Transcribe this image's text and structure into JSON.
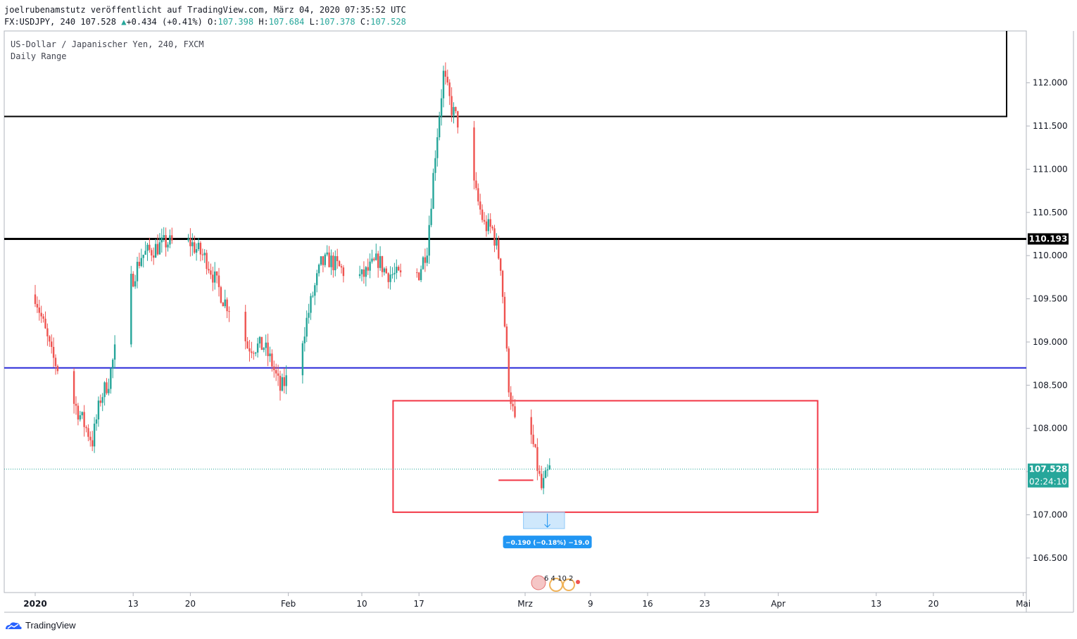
{
  "header": {
    "publisher_line": "joelrubenamstutz veröffentlicht auf TradingView.com, März 04, 2020 07:35:52 UTC",
    "symbol": "FX:USDJPY, 240",
    "last": "107.528",
    "change": "+0.434 (+0.41%)",
    "o_label": "O:",
    "o_value": "107.398",
    "h_label": "H:",
    "h_value": "107.684",
    "l_label": "L:",
    "l_value": "107.378",
    "c_label": "C:",
    "c_value": "107.528"
  },
  "legend": {
    "line1": "US-Dollar / Japanischer Yen, 240, FXCM",
    "line2": "Daily Range"
  },
  "branding": {
    "logo_text": "TradingView"
  },
  "colors": {
    "up": "#26a69a",
    "down": "#ef5350",
    "box": "#f23645",
    "hline_blue": "#2a2ad8",
    "hline_black": "#000000",
    "price_tag": "#26a69a",
    "measure": "#2196f3"
  },
  "chart_data": {
    "type": "candlestick",
    "x_axis_type": "date",
    "ylim": [
      106.1,
      112.6
    ],
    "y_ticks": [
      106.5,
      107.0,
      107.5,
      108.0,
      108.5,
      109.0,
      109.5,
      110.0,
      110.5,
      111.0,
      111.5,
      112.0
    ],
    "y_tick_labels": [
      "106.500",
      "107.000",
      "107.500",
      "108.000",
      "108.500",
      "109.000",
      "109.500",
      "110.000",
      "110.500",
      "111.000",
      "111.500",
      "112.000"
    ],
    "x_ticks": [
      {
        "date": "2020-01-01",
        "label": "2020"
      },
      {
        "date": "2020-01-13",
        "label": "13"
      },
      {
        "date": "2020-01-20",
        "label": "20"
      },
      {
        "date": "2020-02-01",
        "label": "Feb"
      },
      {
        "date": "2020-02-10",
        "label": "10"
      },
      {
        "date": "2020-02-17",
        "label": "17"
      },
      {
        "date": "2020-03-01",
        "label": "Mrz"
      },
      {
        "date": "2020-03-09",
        "label": "9"
      },
      {
        "date": "2020-03-16",
        "label": "16"
      },
      {
        "date": "2020-03-23",
        "label": "23"
      },
      {
        "date": "2020-04-01",
        "label": "Apr"
      },
      {
        "date": "2020-04-13",
        "label": "13"
      },
      {
        "date": "2020-04-20",
        "label": "20"
      },
      {
        "date": "2020-05-01",
        "label": "Mai"
      }
    ],
    "price_path": [
      [
        "2020-01-01",
        109.55
      ],
      [
        "2020-01-03",
        108.85
      ],
      [
        "2020-01-05",
        108.45
      ],
      [
        "2020-01-07",
        108.05
      ],
      [
        "2020-01-08",
        107.85
      ],
      [
        "2020-01-09",
        108.35
      ],
      [
        "2020-01-10",
        108.55
      ],
      [
        "2020-01-11",
        109.0
      ],
      [
        "2020-01-12",
        109.55
      ],
      [
        "2020-01-13",
        109.75
      ],
      [
        "2020-01-14",
        110.0
      ],
      [
        "2020-01-16",
        110.1
      ],
      [
        "2020-01-17",
        110.15
      ],
      [
        "2020-01-19",
        110.15
      ],
      [
        "2020-01-20",
        110.15
      ],
      [
        "2020-01-22",
        109.95
      ],
      [
        "2020-01-24",
        109.5
      ],
      [
        "2020-01-26",
        109.25
      ],
      [
        "2020-01-27",
        108.95
      ],
      [
        "2020-01-29",
        108.95
      ],
      [
        "2020-01-30",
        108.75
      ],
      [
        "2020-01-31",
        108.45
      ],
      [
        "2020-02-02",
        108.75
      ],
      [
        "2020-02-04",
        109.55
      ],
      [
        "2020-02-05",
        109.9
      ],
      [
        "2020-02-06",
        109.95
      ],
      [
        "2020-02-08",
        109.8
      ],
      [
        "2020-02-10",
        109.75
      ],
      [
        "2020-02-12",
        109.95
      ],
      [
        "2020-02-13",
        109.8
      ],
      [
        "2020-02-15",
        109.75
      ],
      [
        "2020-02-17",
        109.8
      ],
      [
        "2020-02-18",
        110.1
      ],
      [
        "2020-02-19",
        111.2
      ],
      [
        "2020-02-20",
        112.1
      ],
      [
        "2020-02-21",
        111.7
      ],
      [
        "2020-02-22",
        111.5
      ],
      [
        "2020-02-23",
        111.1
      ],
      [
        "2020-02-24",
        110.7
      ],
      [
        "2020-02-25",
        110.35
      ],
      [
        "2020-02-26",
        110.3
      ],
      [
        "2020-02-27",
        109.9
      ],
      [
        "2020-02-28",
        108.5
      ],
      [
        "2020-02-29",
        107.9
      ],
      [
        "2020-03-01",
        108.2
      ],
      [
        "2020-03-02",
        107.8
      ],
      [
        "2020-03-03",
        107.3
      ],
      [
        "2020-03-04",
        107.53
      ]
    ],
    "last_price": 107.528,
    "last_price_label": "107.528",
    "countdown_label": "02:24:10",
    "horizontal_lines": [
      {
        "price": 110.193,
        "label": "110.193",
        "color": "#000000"
      },
      {
        "price": 108.7,
        "color": "#2a2ad8"
      },
      {
        "price": 111.61,
        "color": "#000000"
      }
    ],
    "rectangles": [
      {
        "from": "2020-02-14",
        "to": "2020-04-06",
        "top": 108.32,
        "bottom": 107.03,
        "color": "#f23645"
      },
      {
        "from": "2020-01-01",
        "to": "2020-04-30",
        "top": 112.55,
        "bottom": 111.61,
        "color": "#000000"
      }
    ],
    "trend_segment": {
      "from": "2020-02-27",
      "to": "2020-03-02",
      "price": 107.4,
      "color": "#f23645"
    },
    "measure": {
      "from": "2020-03-02",
      "to": "2020-03-06",
      "top": 107.03,
      "bottom": 106.84,
      "label": "−0.190 (−0.18%) −19.0"
    },
    "events_label": "6 4 10 2"
  }
}
